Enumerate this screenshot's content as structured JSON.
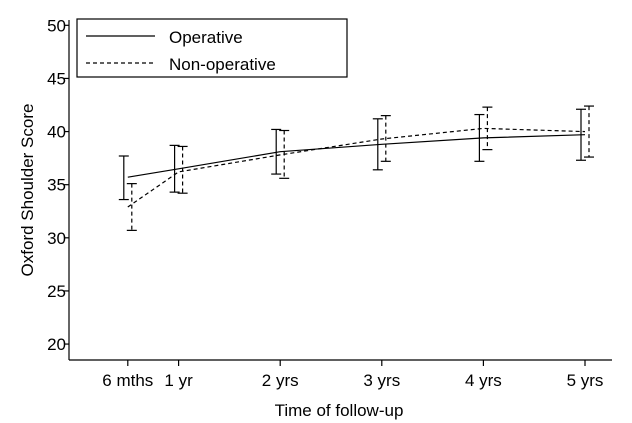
{
  "chart_data": {
    "type": "line",
    "title": "",
    "xlabel": "Time of follow-up",
    "ylabel": "Oxford Shoulder Score",
    "ylim": [
      18.5,
      50.5
    ],
    "yticks": [
      20,
      25,
      30,
      35,
      40,
      45,
      50
    ],
    "xlim": [
      0,
      5
    ],
    "categories": [
      "6 mths",
      "1 yr",
      "2 yrs",
      "3 yrs",
      "4 yrs",
      "5 yrs"
    ],
    "x": [
      0.5,
      1,
      2,
      3,
      4,
      5
    ],
    "legend_position": "top-left",
    "grid": false,
    "series": [
      {
        "name": "Operative",
        "style": "solid",
        "values": [
          35.7,
          36.5,
          38.1,
          38.8,
          39.4,
          39.7
        ],
        "err_low": [
          33.6,
          34.3,
          36.0,
          36.4,
          37.2,
          37.3
        ],
        "err_high": [
          37.7,
          38.7,
          40.2,
          41.2,
          41.6,
          42.1
        ]
      },
      {
        "name": "Non-operative",
        "style": "dashed",
        "values": [
          32.9,
          36.2,
          37.8,
          39.3,
          40.3,
          40.0
        ],
        "err_low": [
          30.7,
          34.2,
          35.6,
          37.2,
          38.3,
          37.6
        ],
        "err_high": [
          35.1,
          38.6,
          40.1,
          41.5,
          42.3,
          42.4
        ]
      }
    ]
  }
}
